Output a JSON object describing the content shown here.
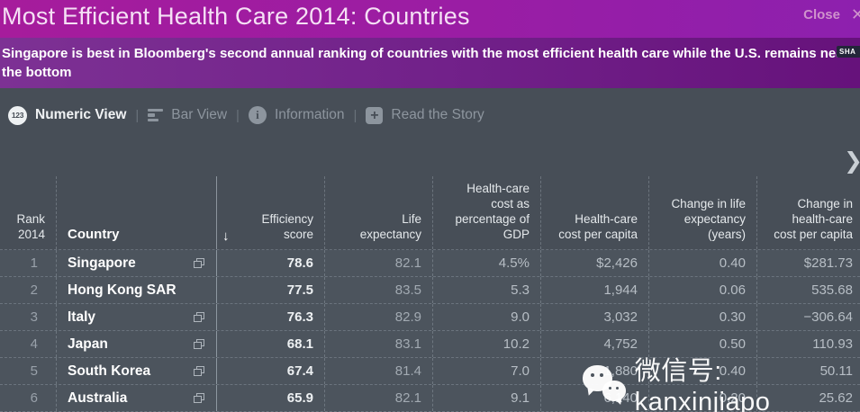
{
  "colors": {
    "title_bar": "#9c1ba0",
    "subtitle_bar": "#6f1c83",
    "background": "#474e57",
    "accent_text": "#ffffff"
  },
  "title_bar": {
    "title": "Most Efficient Health Care 2014: Countries",
    "close_label": "Close",
    "close_icon": "✕"
  },
  "subtitle": {
    "text": "Singapore is best in Bloomberg's second annual ranking of countries with the most efficient health care while the U.S. remains near the bottom",
    "share_label": "SHA"
  },
  "toolbar": {
    "separator": "|",
    "items": [
      {
        "label": "Numeric View",
        "icon": "numeric-123-icon",
        "active": true
      },
      {
        "label": "Bar View",
        "icon": "bar-chart-icon",
        "active": false
      },
      {
        "label": "Information",
        "icon": "info-circle-icon",
        "active": false
      },
      {
        "label": "Read the Story",
        "icon": "plus-square-icon",
        "active": false
      }
    ],
    "icon_123_text": "123",
    "icon_info_text": "i",
    "icon_plus_text": "+"
  },
  "table": {
    "sort_icon": "↓",
    "scroll_icon": "❯",
    "headers": {
      "rank": "Rank\n2014",
      "country": "Country",
      "efficiency": "Efficiency\nscore",
      "life_expectancy": "Life\nexpectancy",
      "gdp_pct": "Health-care\ncost as\npercentage of\nGDP",
      "cost_per_capita": "Health-care\ncost per capita",
      "change_life": "Change in life\nexpectancy\n(years)",
      "change_cost": "Change in\nhealth-care\ncost per capita"
    },
    "rows": [
      {
        "rank": "1",
        "country": "Singapore",
        "has_icon": true,
        "efficiency": "78.6",
        "life_expectancy": "82.1",
        "gdp_pct": "4.5%",
        "cost_per_capita": "$2,426",
        "change_life": "0.40",
        "change_cost": "$281.73"
      },
      {
        "rank": "2",
        "country": "Hong Kong SAR",
        "has_icon": false,
        "efficiency": "77.5",
        "life_expectancy": "83.5",
        "gdp_pct": "5.3",
        "cost_per_capita": "1,944",
        "change_life": "0.06",
        "change_cost": "535.68"
      },
      {
        "rank": "3",
        "country": "Italy",
        "has_icon": true,
        "efficiency": "76.3",
        "life_expectancy": "82.9",
        "gdp_pct": "9.0",
        "cost_per_capita": "3,032",
        "change_life": "0.30",
        "change_cost": "−306.64"
      },
      {
        "rank": "4",
        "country": "Japan",
        "has_icon": true,
        "efficiency": "68.1",
        "life_expectancy": "83.1",
        "gdp_pct": "10.2",
        "cost_per_capita": "4,752",
        "change_life": "0.50",
        "change_cost": "110.93"
      },
      {
        "rank": "5",
        "country": "South Korea",
        "has_icon": true,
        "efficiency": "67.4",
        "life_expectancy": "81.4",
        "gdp_pct": "7.0",
        "cost_per_capita": "1,880",
        "change_life": "0.40",
        "change_cost": "50.11"
      },
      {
        "rank": "6",
        "country": "Australia",
        "has_icon": true,
        "efficiency": "65.9",
        "life_expectancy": "82.1",
        "gdp_pct": "9.1",
        "cost_per_capita": "6,140",
        "change_life": "0.20",
        "change_cost": "25.62"
      }
    ]
  },
  "watermark": {
    "icon": "wechat-icon",
    "text": "微信号: kanxinjiapo"
  }
}
